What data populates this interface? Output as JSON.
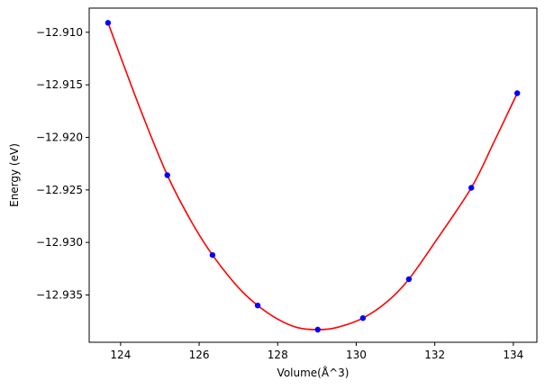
{
  "chart_data": {
    "type": "scatter",
    "xlabel": "Volume(Å^3)",
    "ylabel": "Energy (eV)",
    "xlim": [
      123.2,
      134.6
    ],
    "ylim": [
      -12.9395,
      -12.9077
    ],
    "xticks": [
      124,
      126,
      128,
      130,
      132,
      134
    ],
    "yticks": [
      -12.935,
      -12.93,
      -12.925,
      -12.92,
      -12.915,
      -12.91
    ],
    "xtick_labels": [
      "124",
      "126",
      "128",
      "130",
      "132",
      "134"
    ],
    "ytick_labels": [
      "−12.935",
      "−12.930",
      "−12.925",
      "−12.920",
      "−12.915",
      "−12.910"
    ],
    "series": [
      {
        "kind": "points",
        "color": "#0000ff",
        "x": [
          123.68,
          125.19,
          126.34,
          127.49,
          129.02,
          130.17,
          131.34,
          132.93,
          134.1
        ],
        "y": [
          -12.9091,
          -12.9236,
          -12.9312,
          -12.936,
          -12.9383,
          -12.9372,
          -12.9335,
          -12.9248,
          -12.9158
        ]
      },
      {
        "kind": "fit-curve",
        "color": "#ff0000",
        "x": [
          123.68,
          124.5,
          125.19,
          125.8,
          126.34,
          127.0,
          127.49,
          128.0,
          128.5,
          129.02,
          129.5,
          130.17,
          130.8,
          131.34,
          132.0,
          132.93,
          133.5,
          134.1
        ],
        "y": [
          -12.9091,
          -12.9173,
          -12.9236,
          -12.928,
          -12.9312,
          -12.9343,
          -12.936,
          -12.9373,
          -12.9381,
          -12.9383,
          -12.9381,
          -12.9372,
          -12.9356,
          -12.9335,
          -12.93,
          -12.9248,
          -12.9205,
          -12.9158
        ]
      }
    ]
  }
}
